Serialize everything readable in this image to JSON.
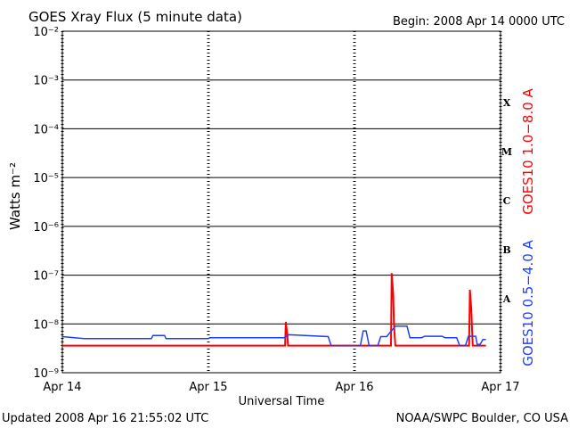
{
  "chart_data": {
    "type": "line",
    "title": "GOES Xray Flux (5 minute data)",
    "subtitle": "Begin:  2008 Apr 14 0000 UTC",
    "x_label": "Universal Time",
    "y_label": "Watts m⁻²",
    "footer_left": "Updated 2008 Apr 16 21:55:02 UTC",
    "footer_right": "NOAA/SWPC Boulder, CO USA",
    "flare_classes": [
      "X",
      "M",
      "C",
      "B",
      "A"
    ],
    "log_y": true,
    "grid": true,
    "xlim": [
      0,
      3
    ],
    "xticks": [
      {
        "value": 0,
        "label": "Apr 14"
      },
      {
        "value": 1,
        "label": "Apr 15"
      },
      {
        "value": 2,
        "label": "Apr 16"
      },
      {
        "value": 3,
        "label": "Apr 17"
      }
    ],
    "ylim": [
      1e-09,
      0.01
    ],
    "yticks": [
      {
        "value": 1e-09,
        "label": "10⁻⁹"
      },
      {
        "value": 1e-08,
        "label": "10⁻⁸"
      },
      {
        "value": 1e-07,
        "label": "10⁻⁷"
      },
      {
        "value": 1e-06,
        "label": "10⁻⁶"
      },
      {
        "value": 1e-05,
        "label": "10⁻⁵"
      },
      {
        "value": 0.0001,
        "label": "10⁻⁴"
      },
      {
        "value": 0.001,
        "label": "10⁻³"
      },
      {
        "value": 0.01,
        "label": "10⁻²"
      }
    ],
    "series": [
      {
        "name": "GOES10 1.0−8.0 A",
        "color": "#ff0000",
        "x": [
          0,
          1.525,
          1.53,
          1.54,
          1.545,
          2.25,
          2.255,
          2.265,
          2.27,
          2.28,
          2.785,
          2.79,
          2.8,
          2.805,
          2.81,
          2.9
        ],
        "values": [
          3.6e-09,
          3.6e-09,
          1.1e-08,
          6e-09,
          3.6e-09,
          3.6e-09,
          1.1e-07,
          4e-08,
          1e-08,
          3.6e-09,
          3.6e-09,
          5e-08,
          2e-08,
          8e-09,
          3.6e-09,
          3.6e-09
        ]
      },
      {
        "name": "GOES10 0.5−4.0 A",
        "color": "#1f3fff",
        "x": [
          0,
          0.15,
          0.61,
          0.62,
          0.7,
          0.71,
          1.0,
          1.01,
          1.52,
          1.55,
          1.82,
          1.84,
          2.04,
          2.06,
          2.08,
          2.1,
          2.16,
          2.18,
          2.22,
          2.28,
          2.36,
          2.38,
          2.46,
          2.48,
          2.6,
          2.62,
          2.7,
          2.72,
          2.76,
          2.78,
          2.83,
          2.84,
          2.86,
          2.88,
          2.9
        ],
        "values": [
          5.5e-09,
          5e-09,
          5e-09,
          5.8e-09,
          5.8e-09,
          5e-09,
          5e-09,
          5.2e-09,
          5.2e-09,
          6e-09,
          5.5e-09,
          3.6e-09,
          3.6e-09,
          7.2e-09,
          7.2e-09,
          3.6e-09,
          3.6e-09,
          5.5e-09,
          5.5e-09,
          9e-09,
          9e-09,
          5.2e-09,
          5.2e-09,
          5.6e-09,
          5.6e-09,
          5.2e-09,
          5.2e-09,
          3.6e-09,
          3.6e-09,
          5.6e-09,
          5.6e-09,
          3.8e-09,
          3.8e-09,
          4.8e-09,
          4.8e-09
        ]
      }
    ]
  }
}
